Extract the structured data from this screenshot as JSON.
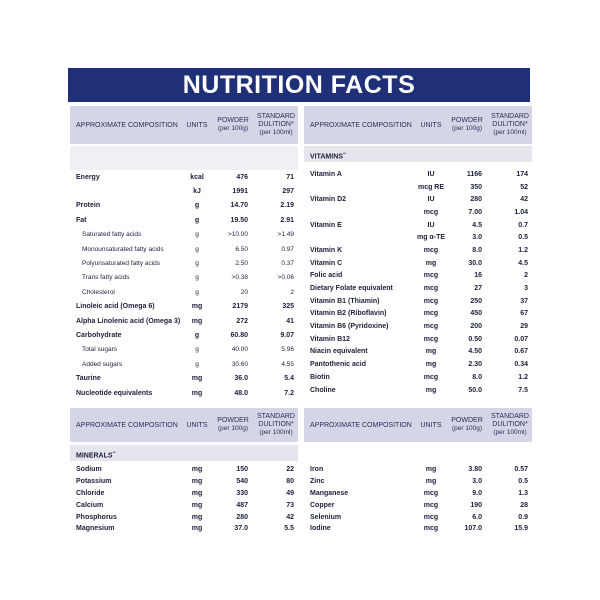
{
  "title": "NUTRITION FACTS",
  "header": {
    "composition": "APPROXIMATE COMPOSITION",
    "units": "UNITS",
    "powder": "POWDER",
    "powder_unit": "(per 100g)",
    "standard": "STANDARD DULITION*",
    "standard_unit": "(per 100ml)"
  },
  "sections": {
    "vitamins": "VITAMINS",
    "vitamins_mark": "**",
    "minerals": "MINERALS",
    "minerals_mark": "**"
  },
  "macros": [
    {
      "name": "Energy",
      "unit": "kcal",
      "powder": "476",
      "standard": "71",
      "bold": true
    },
    {
      "name": "",
      "unit": "kJ",
      "powder": "1991",
      "standard": "297",
      "bold": true
    },
    {
      "name": "Protein",
      "unit": "g",
      "powder": "14.70",
      "standard": "2.19",
      "bold": true
    },
    {
      "name": "Fat",
      "unit": "g",
      "powder": "19.50",
      "standard": "2.91",
      "bold": true
    },
    {
      "name": "Saturated fatty acids",
      "unit": "g",
      "powder": ">10.00",
      "standard": ">1.49",
      "sub": true
    },
    {
      "name": "Monounsaturated fatty acids",
      "unit": "g",
      "powder": "6.50",
      "standard": "0.97",
      "sub": true
    },
    {
      "name": "Polyunsaturated fatty acids",
      "unit": "g",
      "powder": "2.50",
      "standard": "0.37",
      "sub": true
    },
    {
      "name": "Trans fatty acids",
      "unit": "g",
      "powder": ">0.38",
      "standard": ">0.06",
      "sub": true
    },
    {
      "name": "Cholesterol",
      "unit": "g",
      "powder": "20",
      "standard": "2",
      "sub": true
    },
    {
      "name": "Linoleic acid (Omega 6)",
      "unit": "mg",
      "powder": "2179",
      "standard": "325",
      "bold": true
    },
    {
      "name": "Alpha Linolenic acid (Omega 3)",
      "unit": "mg",
      "powder": "272",
      "standard": "41",
      "bold": true
    },
    {
      "name": "Carbohydrate",
      "unit": "g",
      "powder": "60.80",
      "standard": "9.07",
      "bold": true
    },
    {
      "name": "Total sugars",
      "unit": "g",
      "powder": "40.00",
      "standard": "5.96",
      "sub": true
    },
    {
      "name": "Added sugars",
      "unit": "g",
      "powder": "30.60",
      "standard": "4.55",
      "sub": true
    },
    {
      "name": "Taurine",
      "unit": "mg",
      "powder": "36.0",
      "standard": "5.4",
      "bold": true
    },
    {
      "name": "Nucleotide equivalents",
      "unit": "mg",
      "powder": "48.0",
      "standard": "7.2",
      "bold": true
    }
  ],
  "vitamins": [
    {
      "name": "Vitamin A",
      "unit": "IU",
      "powder": "1166",
      "standard": "174"
    },
    {
      "name": "",
      "unit": "mcg RE",
      "powder": "350",
      "standard": "52"
    },
    {
      "name": "Vitamin D2",
      "unit": "IU",
      "powder": "280",
      "standard": "42"
    },
    {
      "name": "",
      "unit": "mcg",
      "powder": "7.00",
      "standard": "1.04"
    },
    {
      "name": "Vitamin E",
      "unit": "IU",
      "powder": "4.5",
      "standard": "0.7"
    },
    {
      "name": "",
      "unit": "mg α-TE",
      "powder": "3.0",
      "standard": "0.5"
    },
    {
      "name": "Vitamin K",
      "unit": "mcg",
      "powder": "8.0",
      "standard": "1.2"
    },
    {
      "name": "Vitamin C",
      "unit": "mg",
      "powder": "30.0",
      "standard": "4.5"
    },
    {
      "name": "Folic acid",
      "unit": "mcg",
      "powder": "16",
      "standard": "2"
    },
    {
      "name": "Dietary Folate equivalent",
      "unit": "mcg",
      "powder": "27",
      "standard": "3"
    },
    {
      "name": "Vitamin B1 (Thiamin)",
      "unit": "mcg",
      "powder": "250",
      "standard": "37"
    },
    {
      "name": "Vitamin B2 (Riboflavin)",
      "unit": "mcg",
      "powder": "450",
      "standard": "67"
    },
    {
      "name": "Vitamin B6 (Pyridoxine)",
      "unit": "mcg",
      "powder": "200",
      "standard": "29"
    },
    {
      "name": "Vitamin B12",
      "unit": "mcg",
      "powder": "0.50",
      "standard": "0.07"
    },
    {
      "name": "Niacin equivalent",
      "unit": "mg",
      "powder": "4.50",
      "standard": "0.67"
    },
    {
      "name": "Pantothenic acid",
      "unit": "mg",
      "powder": "2.30",
      "standard": "0.34"
    },
    {
      "name": "Biotin",
      "unit": "mcg",
      "powder": "8.0",
      "standard": "1.2"
    },
    {
      "name": "Choline",
      "unit": "mg",
      "powder": "50.0",
      "standard": "7.5"
    }
  ],
  "minerals_left": [
    {
      "name": "Sodium",
      "unit": "mg",
      "powder": "150",
      "standard": "22"
    },
    {
      "name": "Potassium",
      "unit": "mg",
      "powder": "540",
      "standard": "80"
    },
    {
      "name": "Chloride",
      "unit": "mg",
      "powder": "330",
      "standard": "49"
    },
    {
      "name": "Calcium",
      "unit": "mg",
      "powder": "487",
      "standard": "73"
    },
    {
      "name": "Phosphorus",
      "unit": "mg",
      "powder": "280",
      "standard": "42"
    },
    {
      "name": "Magnesium",
      "unit": "mg",
      "powder": "37.0",
      "standard": "5.5"
    }
  ],
  "minerals_right": [
    {
      "name": "Iron",
      "unit": "mg",
      "powder": "3.80",
      "standard": "0.57"
    },
    {
      "name": "Zinc",
      "unit": "mg",
      "powder": "3.0",
      "standard": "0.5"
    },
    {
      "name": "Manganese",
      "unit": "mcg",
      "powder": "9.0",
      "standard": "1.3"
    },
    {
      "name": "Copper",
      "unit": "mcg",
      "powder": "190",
      "standard": "28"
    },
    {
      "name": "Selenium",
      "unit": "mcg",
      "powder": "6.0",
      "standard": "0.9"
    },
    {
      "name": "Iodine",
      "unit": "mcg",
      "powder": "107.0",
      "standard": "15.9"
    }
  ]
}
